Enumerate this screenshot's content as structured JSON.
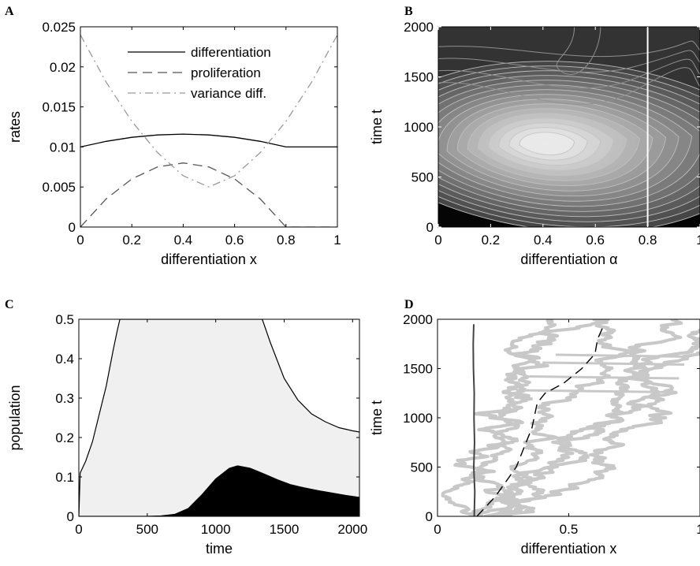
{
  "chart_data": [
    {
      "panel": "A",
      "type": "line",
      "xlabel": "differentiation x",
      "ylabel": "rates",
      "xlim": [
        0,
        1
      ],
      "ylim": [
        0,
        0.025
      ],
      "xticks": [
        "0",
        "0.2",
        "0.4",
        "0.6",
        "0.8",
        "1"
      ],
      "yticks": [
        "0",
        "0.005",
        "0.01",
        "0.015",
        "0.02",
        "0.025"
      ],
      "legend_position": "top-right",
      "series": [
        {
          "name": "differentiation",
          "style": "solid",
          "color": "#000000",
          "x": [
            0,
            0.1,
            0.2,
            0.3,
            0.4,
            0.5,
            0.6,
            0.7,
            0.8,
            0.9,
            1.0
          ],
          "y": [
            0.01,
            0.0107,
            0.0112,
            0.0115,
            0.0116,
            0.0115,
            0.0112,
            0.0107,
            0.01,
            0.01,
            0.01
          ]
        },
        {
          "name": "proliferation",
          "style": "dashed",
          "color": "#555555",
          "x": [
            0,
            0.1,
            0.2,
            0.3,
            0.4,
            0.5,
            0.6,
            0.7,
            0.8,
            0.9,
            1.0
          ],
          "y": [
            0,
            0.0035,
            0.006,
            0.0075,
            0.008,
            0.0075,
            0.006,
            0.0035,
            0,
            0,
            0
          ]
        },
        {
          "name": "variance diff.",
          "style": "dashdot",
          "color": "#999999",
          "x": [
            0,
            0.1,
            0.2,
            0.3,
            0.4,
            0.5,
            0.6,
            0.7,
            0.8,
            0.9,
            1.0
          ],
          "y": [
            0.024,
            0.0181,
            0.0132,
            0.0093,
            0.0064,
            0.005,
            0.0064,
            0.0093,
            0.0132,
            0.0181,
            0.024
          ]
        }
      ]
    },
    {
      "panel": "B",
      "type": "heatmap",
      "xlabel": "differentiation α",
      "ylabel": "time t",
      "xlim": [
        0,
        1
      ],
      "ylim": [
        0,
        2000
      ],
      "xticks": [
        "0",
        "0.2",
        "0.4",
        "0.6",
        "0.8",
        "1"
      ],
      "yticks": [
        "0",
        "500",
        "1000",
        "1500",
        "2000"
      ],
      "peak": {
        "x": 0.41,
        "y": 840
      },
      "vertical_line_x": 0.8,
      "contour_levels": 16
    },
    {
      "panel": "C",
      "type": "area",
      "xlabel": "time",
      "ylabel": "population",
      "xlim": [
        0,
        2050
      ],
      "ylim": [
        0,
        0.5
      ],
      "xticks": [
        "0",
        "500",
        "1000",
        "1500",
        "2000"
      ],
      "yticks": [
        "0",
        "0.1",
        "0.2",
        "0.3",
        "0.4",
        "0.5"
      ],
      "series": [
        {
          "name": "",
          "fill": "#f0f0f0",
          "x": [
            0,
            10,
            50,
            100,
            150,
            200,
            250,
            280,
            300,
            1340,
            1400,
            1500,
            1600,
            1700,
            1800,
            1900,
            2000,
            2050
          ],
          "y": [
            0,
            0.11,
            0.14,
            0.19,
            0.26,
            0.33,
            0.42,
            0.47,
            0.5,
            0.5,
            0.44,
            0.35,
            0.295,
            0.26,
            0.24,
            0.225,
            0.217,
            0.214
          ]
        },
        {
          "name": "",
          "fill": "#000000",
          "x": [
            0,
            500,
            600,
            700,
            800,
            900,
            1000,
            1100,
            1160,
            1250,
            1350,
            1450,
            1550,
            1650,
            1750,
            1850,
            1950,
            2050
          ],
          "y": [
            0,
            0,
            0.001,
            0.005,
            0.02,
            0.055,
            0.095,
            0.122,
            0.128,
            0.122,
            0.108,
            0.093,
            0.08,
            0.072,
            0.065,
            0.059,
            0.053,
            0.048
          ]
        }
      ]
    },
    {
      "panel": "D",
      "type": "line",
      "xlabel": "differentiation x",
      "ylabel": "time t",
      "xlim": [
        0,
        1
      ],
      "ylim": [
        0,
        2000
      ],
      "xticks": [
        "0",
        "0.5",
        "1"
      ],
      "yticks": [
        "0",
        "500",
        "1000",
        "1500",
        "2000"
      ],
      "series": [
        {
          "name": "",
          "style": "solid",
          "color": "#444444",
          "x": [
            0.14,
            0.142,
            0.138,
            0.141,
            0.139,
            0.14,
            0.137,
            0.136,
            0.138
          ],
          "y": [
            0,
            250,
            500,
            750,
            1000,
            1250,
            1500,
            1750,
            1950
          ]
        },
        {
          "name": "",
          "style": "dashed",
          "color": "#000000",
          "x": [
            0.15,
            0.22,
            0.3,
            0.36,
            0.38,
            0.41,
            0.48,
            0.55,
            0.6,
            0.61,
            0.63
          ],
          "y": [
            0,
            200,
            500,
            900,
            1150,
            1250,
            1350,
            1500,
            1650,
            1800,
            1920
          ]
        }
      ]
    }
  ],
  "panels": {
    "A": {
      "label": "A"
    },
    "B": {
      "label": "B"
    },
    "C": {
      "label": "C"
    },
    "D": {
      "label": "D"
    }
  }
}
